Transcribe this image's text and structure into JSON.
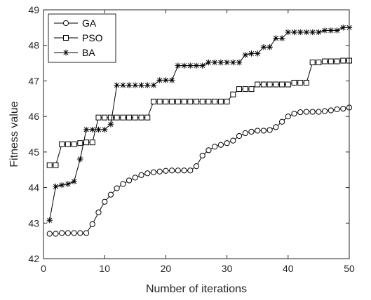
{
  "chart_data": {
    "type": "line",
    "title": "",
    "xlabel": "Number of iterations",
    "ylabel": "Fitness value",
    "xlim": [
      0,
      50
    ],
    "ylim": [
      42,
      49
    ],
    "xticks": [
      0,
      10,
      20,
      30,
      40,
      50
    ],
    "yticks": [
      42,
      43,
      44,
      45,
      46,
      47,
      48,
      49
    ],
    "grid": false,
    "legend_position": "top-left",
    "x": [
      1,
      2,
      3,
      4,
      5,
      6,
      7,
      8,
      9,
      10,
      11,
      12,
      13,
      14,
      15,
      16,
      17,
      18,
      19,
      20,
      21,
      22,
      23,
      24,
      25,
      26,
      27,
      28,
      29,
      30,
      31,
      32,
      33,
      34,
      35,
      36,
      37,
      38,
      39,
      40,
      41,
      42,
      43,
      44,
      45,
      46,
      47,
      48,
      49,
      50
    ],
    "series": [
      {
        "name": "GA",
        "marker": "circle",
        "values": [
          42.7,
          42.7,
          42.72,
          42.72,
          42.72,
          42.72,
          42.72,
          42.97,
          43.3,
          43.6,
          43.8,
          43.98,
          44.1,
          44.2,
          44.28,
          44.35,
          44.4,
          44.43,
          44.45,
          44.47,
          44.48,
          44.48,
          44.48,
          44.48,
          44.6,
          44.9,
          45.05,
          45.15,
          45.2,
          45.25,
          45.32,
          45.45,
          45.53,
          45.57,
          45.6,
          45.6,
          45.62,
          45.7,
          45.85,
          46.0,
          46.08,
          46.12,
          46.13,
          46.13,
          46.13,
          46.15,
          46.17,
          46.2,
          46.22,
          46.25
        ]
      },
      {
        "name": "PSO",
        "marker": "square",
        "values": [
          44.63,
          44.63,
          45.22,
          45.22,
          45.22,
          45.25,
          45.27,
          45.27,
          45.97,
          45.97,
          45.97,
          45.97,
          45.97,
          45.97,
          45.97,
          45.97,
          45.97,
          46.42,
          46.42,
          46.42,
          46.42,
          46.42,
          46.42,
          46.42,
          46.42,
          46.42,
          46.42,
          46.42,
          46.42,
          46.42,
          46.62,
          46.77,
          46.77,
          46.77,
          46.9,
          46.9,
          46.9,
          46.9,
          46.9,
          46.9,
          46.95,
          46.95,
          46.95,
          47.52,
          47.52,
          47.55,
          47.55,
          47.55,
          47.57,
          47.57
        ]
      },
      {
        "name": "BA",
        "marker": "asterisk",
        "values": [
          43.08,
          44.03,
          44.07,
          44.1,
          44.17,
          44.8,
          45.63,
          45.63,
          45.63,
          45.63,
          45.78,
          46.88,
          46.88,
          46.88,
          46.88,
          46.88,
          46.88,
          46.88,
          47.02,
          47.02,
          47.02,
          47.43,
          47.43,
          47.43,
          47.43,
          47.43,
          47.52,
          47.52,
          47.52,
          47.52,
          47.52,
          47.52,
          47.73,
          47.77,
          47.77,
          47.95,
          47.95,
          48.2,
          48.2,
          48.37,
          48.37,
          48.37,
          48.37,
          48.37,
          48.37,
          48.42,
          48.42,
          48.42,
          48.5,
          48.5
        ]
      }
    ]
  }
}
